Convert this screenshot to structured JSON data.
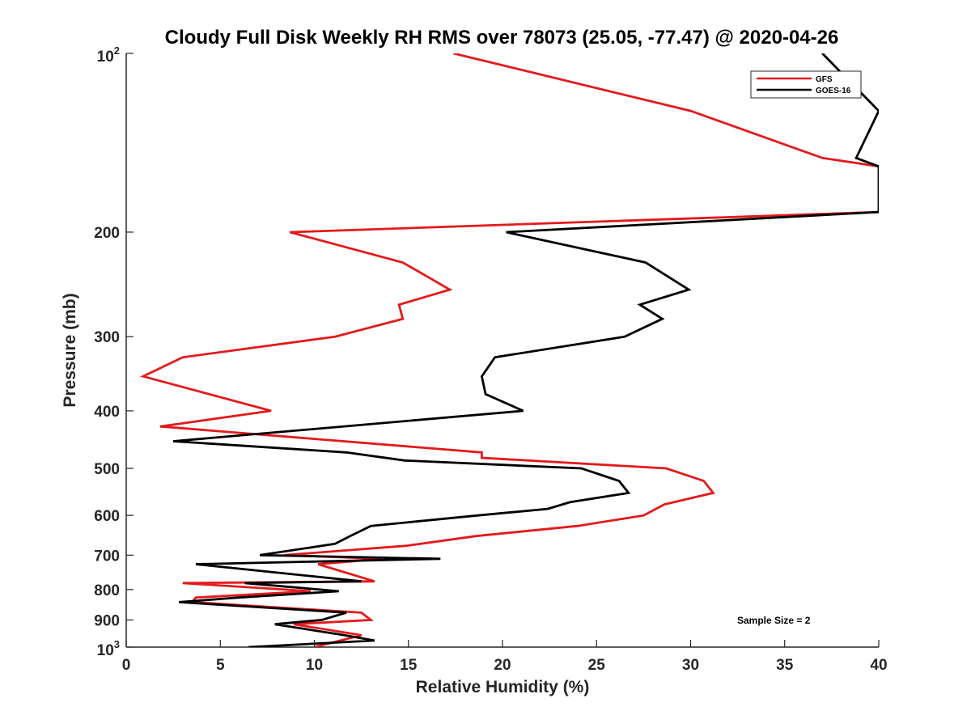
{
  "chart_data": {
    "type": "line",
    "title": "Cloudy Full Disk Weekly RH RMS over 78073 (25.05, -77.47) @ 2020-04-26",
    "xlabel": "Relative Humidity (%)",
    "ylabel": "Pressure (mb)",
    "xlim": [
      0,
      40
    ],
    "ylim": [
      100,
      1000
    ],
    "yscale": "log",
    "y_reversed": true,
    "grid": false,
    "legend_position": "top-right",
    "xticks": [
      "0",
      "5",
      "10",
      "15",
      "20",
      "25",
      "30",
      "35",
      "40"
    ],
    "yticks": [
      "200",
      "300",
      "400",
      "500",
      "600",
      "700",
      "800",
      "900"
    ],
    "ytick_top_base": "10",
    "ytick_top_exp": "2",
    "ytick_bottom_base": "10",
    "ytick_bottom_exp": "3",
    "annotation": "Sample Size = 2",
    "series": [
      {
        "name": "GFS",
        "color": "#e31a1c",
        "points": [
          [
            17.4,
            100
          ],
          [
            30.0,
            125
          ],
          [
            37.0,
            150
          ],
          [
            40.0,
            155
          ],
          [
            40.0,
            185
          ],
          [
            8.7,
            200
          ],
          [
            14.7,
            225
          ],
          [
            17.2,
            250
          ],
          [
            14.5,
            265
          ],
          [
            14.7,
            280
          ],
          [
            11.1,
            300
          ],
          [
            3.0,
            325
          ],
          [
            0.9,
            350
          ],
          [
            7.7,
            400
          ],
          [
            1.8,
            425
          ],
          [
            18.9,
            470
          ],
          [
            18.9,
            480
          ],
          [
            28.7,
            500
          ],
          [
            30.7,
            525
          ],
          [
            31.2,
            550
          ],
          [
            28.6,
            575
          ],
          [
            27.5,
            600
          ],
          [
            24.0,
            625
          ],
          [
            18.6,
            650
          ],
          [
            14.9,
            675
          ],
          [
            8.4,
            700
          ],
          [
            13.6,
            710
          ],
          [
            10.2,
            725
          ],
          [
            13.2,
            775
          ],
          [
            3.0,
            780
          ],
          [
            9.8,
            805
          ],
          [
            3.7,
            825
          ],
          [
            3.5,
            840
          ],
          [
            12.5,
            875
          ],
          [
            13.0,
            900
          ],
          [
            8.9,
            915
          ],
          [
            12.5,
            955
          ],
          [
            10.0,
            1000
          ]
        ]
      },
      {
        "name": "GOES-16",
        "color": "#000000",
        "points": [
          [
            37.0,
            100
          ],
          [
            40.0,
            125
          ],
          [
            38.8,
            150
          ],
          [
            40.0,
            155
          ],
          [
            40.0,
            185
          ],
          [
            20.2,
            200
          ],
          [
            27.6,
            225
          ],
          [
            29.9,
            250
          ],
          [
            27.3,
            265
          ],
          [
            28.5,
            280
          ],
          [
            26.5,
            300
          ],
          [
            19.6,
            325
          ],
          [
            18.9,
            350
          ],
          [
            19.1,
            375
          ],
          [
            21.1,
            400
          ],
          [
            2.5,
            450
          ],
          [
            11.7,
            470
          ],
          [
            14.8,
            485
          ],
          [
            24.2,
            500
          ],
          [
            26.2,
            525
          ],
          [
            26.7,
            550
          ],
          [
            23.6,
            570
          ],
          [
            22.4,
            585
          ],
          [
            18.7,
            600
          ],
          [
            13.0,
            625
          ],
          [
            11.9,
            650
          ],
          [
            11.1,
            670
          ],
          [
            7.1,
            700
          ],
          [
            16.7,
            710
          ],
          [
            3.7,
            725
          ],
          [
            12.5,
            775
          ],
          [
            6.3,
            780
          ],
          [
            11.3,
            805
          ],
          [
            6.0,
            825
          ],
          [
            2.8,
            840
          ],
          [
            11.7,
            875
          ],
          [
            10.4,
            900
          ],
          [
            7.9,
            915
          ],
          [
            11.6,
            955
          ],
          [
            13.2,
            975
          ],
          [
            6.5,
            1000
          ]
        ]
      }
    ]
  }
}
